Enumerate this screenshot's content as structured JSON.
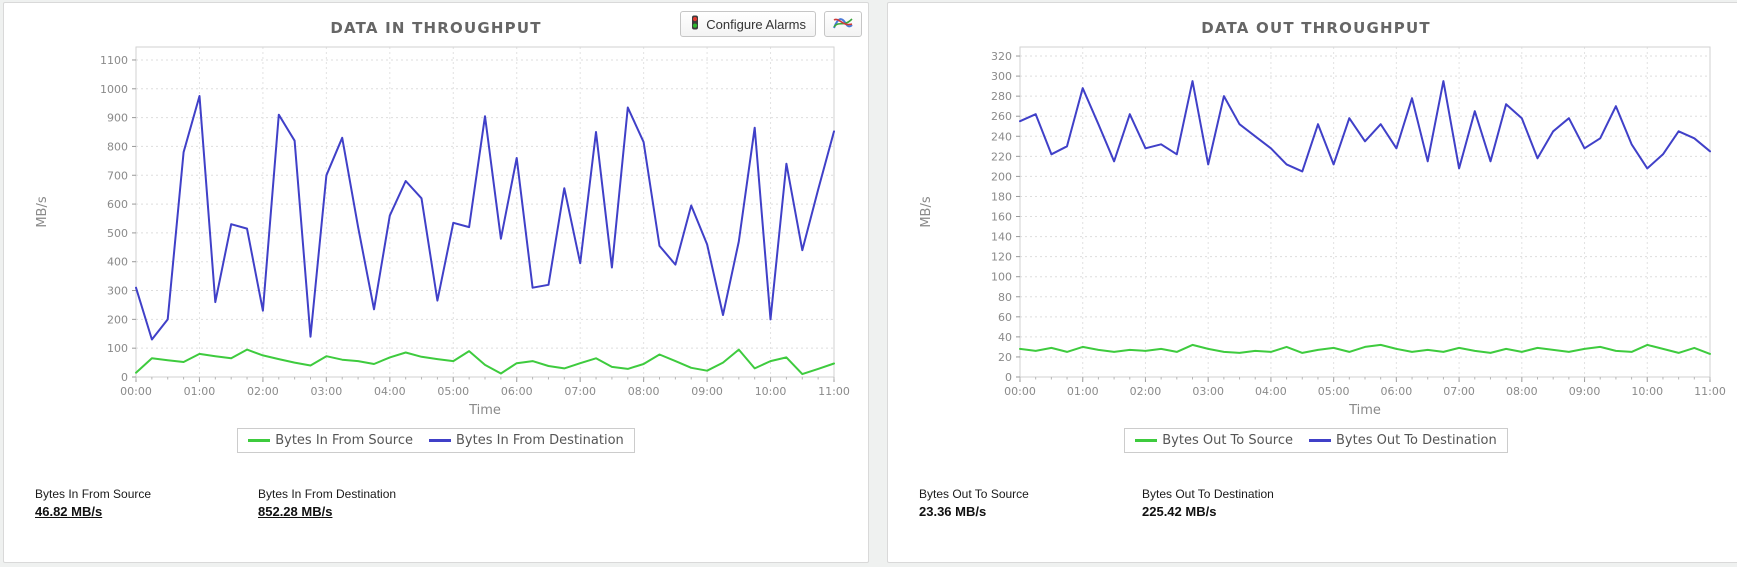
{
  "toolbar": {
    "configure_alarms_label": "Configure Alarms"
  },
  "panels": [
    {
      "title": "DATA IN THROUGHPUT",
      "legend": [
        {
          "label": "Bytes In From Source",
          "color": "#3ecb3e"
        },
        {
          "label": "Bytes In From Destination",
          "color": "#4040c8"
        }
      ],
      "stats": [
        {
          "label": "Bytes In From Source",
          "value": "46.82 MB/s"
        },
        {
          "label": "Bytes In From Destination",
          "value": "852.28 MB/s"
        }
      ]
    },
    {
      "title": "DATA OUT THROUGHPUT",
      "legend": [
        {
          "label": "Bytes Out To Source",
          "color": "#3ecb3e"
        },
        {
          "label": "Bytes Out To Destination",
          "color": "#4040c8"
        }
      ],
      "stats": [
        {
          "label": "Bytes Out To Source",
          "value": "23.36 MB/s"
        },
        {
          "label": "Bytes Out To Destination",
          "value": "225.42 MB/s"
        }
      ]
    }
  ],
  "chart_data": [
    {
      "type": "line",
      "title": "DATA IN THROUGHPUT",
      "xlabel": "Time",
      "ylabel": "MB/s",
      "ylim": [
        0,
        1100
      ],
      "ytick_step": 100,
      "grid": true,
      "legend_position": "bottom",
      "x_labels": [
        "00:00",
        "01:00",
        "02:00",
        "03:00",
        "04:00",
        "05:00",
        "06:00",
        "07:00",
        "08:00",
        "09:00",
        "10:00",
        "11:00"
      ],
      "minutes_per_point": 15,
      "series": [
        {
          "name": "Bytes In From Source",
          "color": "#3ecb3e",
          "values": [
            15,
            65,
            58,
            52,
            80,
            72,
            65,
            95,
            75,
            62,
            50,
            40,
            72,
            60,
            55,
            45,
            68,
            85,
            70,
            62,
            55,
            90,
            42,
            12,
            48,
            55,
            38,
            30,
            48,
            65,
            35,
            28,
            45,
            78,
            55,
            32,
            22,
            50,
            95,
            30,
            55,
            68,
            10,
            28,
            47
          ]
        },
        {
          "name": "Bytes In From Destination",
          "color": "#4040c8",
          "values": [
            310,
            130,
            200,
            780,
            975,
            260,
            530,
            515,
            230,
            910,
            820,
            140,
            700,
            830,
            520,
            235,
            560,
            680,
            620,
            265,
            535,
            520,
            905,
            480,
            760,
            310,
            320,
            655,
            395,
            850,
            380,
            935,
            815,
            455,
            390,
            595,
            460,
            215,
            470,
            865,
            200,
            740,
            440,
            650,
            852
          ]
        }
      ]
    },
    {
      "type": "line",
      "title": "DATA OUT THROUGHPUT",
      "xlabel": "Time",
      "ylabel": "MB/s",
      "ylim": [
        0,
        320
      ],
      "ytick_step": 20,
      "grid": true,
      "legend_position": "bottom",
      "x_labels": [
        "00:00",
        "01:00",
        "02:00",
        "03:00",
        "04:00",
        "05:00",
        "06:00",
        "07:00",
        "08:00",
        "09:00",
        "10:00",
        "11:00"
      ],
      "minutes_per_point": 15,
      "series": [
        {
          "name": "Bytes Out To Source",
          "color": "#3ecb3e",
          "values": [
            28,
            26,
            29,
            25,
            30,
            27,
            25,
            27,
            26,
            28,
            25,
            32,
            28,
            25,
            24,
            26,
            25,
            30,
            24,
            27,
            29,
            25,
            30,
            32,
            28,
            25,
            27,
            25,
            29,
            26,
            24,
            28,
            25,
            29,
            27,
            25,
            28,
            30,
            26,
            25,
            32,
            28,
            24,
            29,
            23
          ]
        },
        {
          "name": "Bytes Out To Destination",
          "color": "#4040c8",
          "values": [
            255,
            262,
            222,
            230,
            288,
            252,
            215,
            262,
            228,
            232,
            222,
            295,
            212,
            280,
            252,
            240,
            228,
            212,
            205,
            252,
            212,
            258,
            235,
            252,
            228,
            278,
            215,
            295,
            208,
            265,
            215,
            272,
            258,
            218,
            245,
            258,
            228,
            238,
            270,
            232,
            208,
            222,
            245,
            238,
            225
          ]
        }
      ]
    }
  ]
}
